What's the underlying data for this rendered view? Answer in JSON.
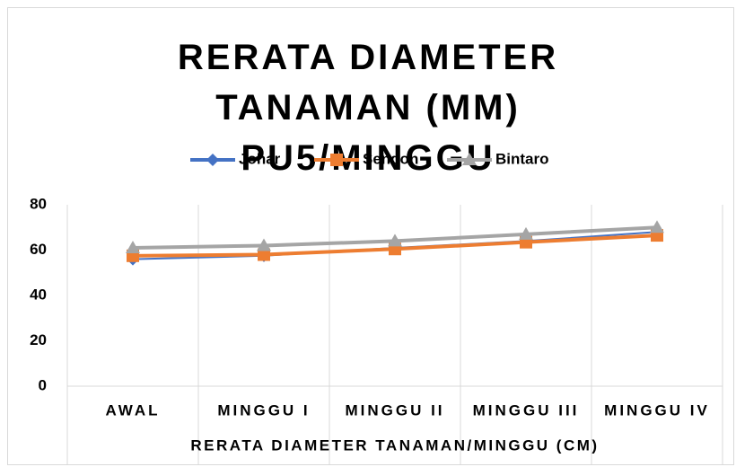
{
  "chart_data": {
    "type": "line",
    "title": "RERATA DIAMETER TANAMAN (MM) PU5/MINGGU",
    "x_label": "RERATA DIAMETER TANAMAN/MINGGU (CM)",
    "categories": [
      "AWAL",
      "MINGGU I",
      "MINGGU II",
      "MINGGU III",
      "MINGGU IV"
    ],
    "series": [
      {
        "name": "Johar",
        "color": "#4472c4",
        "marker": "diamond",
        "values": [
          56,
          57.5,
          61,
          64,
          68
        ]
      },
      {
        "name": "Sengon",
        "color": "#ed7d31",
        "marker": "square",
        "values": [
          57.5,
          58,
          60.5,
          63.5,
          66.5
        ]
      },
      {
        "name": "Bintaro",
        "color": "#a5a5a5",
        "marker": "triangle",
        "values": [
          61,
          62,
          64,
          67,
          70
        ]
      }
    ],
    "ylim": [
      0,
      80
    ],
    "yticks": [
      0,
      20,
      40,
      60,
      80
    ],
    "legend": "top"
  }
}
